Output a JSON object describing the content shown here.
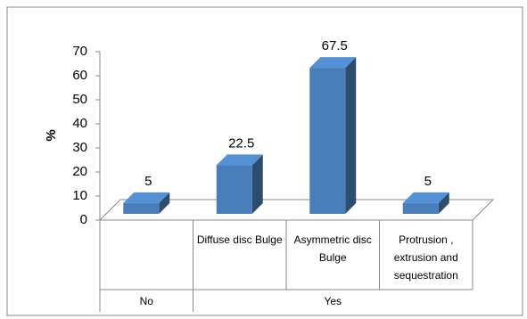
{
  "chart_data": {
    "type": "bar3d",
    "y_label": "%",
    "categories": [
      null,
      "Diffuse disc Bulge",
      "Asymmetric disc Bulge",
      "Protrusion , extrusion and sequestration"
    ],
    "category_groups": [
      "No",
      "Yes",
      "Yes",
      "Yes"
    ],
    "values": [
      5,
      22.5,
      67.5,
      5
    ],
    "color": "#4a7ebb",
    "ylim": [
      0,
      70
    ],
    "yticks": [
      0,
      10,
      20,
      30,
      40,
      50,
      60,
      70
    ]
  }
}
